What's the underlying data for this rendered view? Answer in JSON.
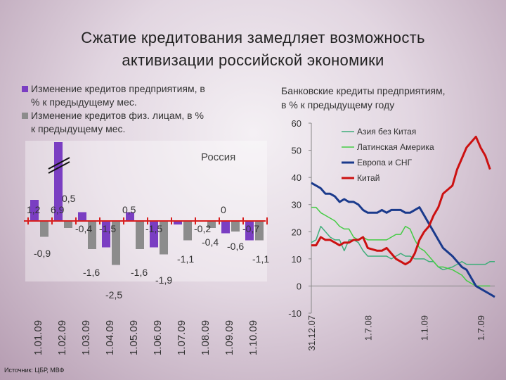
{
  "title": {
    "line1": "Сжатие кредитования замедляет возможность",
    "line2": "активизации российской экономики"
  },
  "source": "Источник: ЦБР, МВФ",
  "chart_data": [
    {
      "type": "bar",
      "subtitle": "Россия",
      "legend": [
        {
          "name": "Изменение кредитов предприятиям, в % к предыдущему мес.",
          "lines": [
            "Изменение кредитов предприятиям, в",
            "% к предыдущему мес."
          ],
          "color": "#7a3ec2"
        },
        {
          "name": "Изменение кредитов физ. лицам, в % к предыдущему мес.",
          "lines": [
            "Изменение кредитов физ. лицам, в %",
            "к предыдущему мес."
          ],
          "color": "#8c8c8c"
        }
      ],
      "categories": [
        "1.01.09",
        "1.02.09",
        "1.03.09",
        "1.04.09",
        "1.05.09",
        "1.06.09",
        "1.07.09",
        "1.08.09",
        "1.09.09",
        "1.10.09"
      ],
      "series": [
        {
          "name": "Изменение кредитов предприятиям, в % к предыдущему мес.",
          "color": "#7a3ec2",
          "values": [
            1.2,
            6.9,
            0.5,
            -1.5,
            0.5,
            -1.5,
            -0.2,
            0,
            -0.7,
            -1.1
          ],
          "labels": [
            "1,2",
            "6,9",
            "0,5",
            "-1,5",
            "0,5",
            "-1,5",
            "-0,2",
            "0",
            "-0,7",
            "-1,1"
          ]
        },
        {
          "name": "Изменение кредитов физ. лицам, в % к предыдущему мес.",
          "color": "#8c8c8c",
          "values": [
            -0.9,
            -0.4,
            -1.6,
            -2.5,
            -1.6,
            -1.9,
            -1.1,
            -0.4,
            -0.6,
            -1.1
          ],
          "labels": [
            "-0,9",
            "-0,4",
            "-1,6",
            "-2,5",
            "-1,6",
            "-1,9",
            "-1,1",
            "-0,4",
            "-0,6",
            "-1,1"
          ]
        }
      ],
      "axis_break": true,
      "line_colors": {
        "axis": "#d81e1e"
      }
    },
    {
      "type": "line",
      "title": "Банковские кредиты предприятиям, в % к предыдущему году",
      "title_lines": [
        "Банковские кредиты предприятиям,",
        "в % к предыдущему году"
      ],
      "ylim": [
        -10,
        60
      ],
      "yticks": [
        -10,
        0,
        10,
        20,
        30,
        40,
        50,
        60
      ],
      "xlim": [
        0,
        19.5
      ],
      "xticks": [
        {
          "x": 0,
          "label": "31.12.07"
        },
        {
          "x": 6,
          "label": "1.7.08"
        },
        {
          "x": 12,
          "label": "1.1.09"
        },
        {
          "x": 18,
          "label": "1.7.09"
        }
      ],
      "series": [
        {
          "name": "Азия без Китая",
          "color": "#3fae7a",
          "width": 1.5,
          "points": [
            [
              0,
              16
            ],
            [
              0.5,
              17
            ],
            [
              1,
              22
            ],
            [
              1.5,
              20
            ],
            [
              2,
              18
            ],
            [
              2.5,
              17
            ],
            [
              3,
              17
            ],
            [
              3.5,
              13
            ],
            [
              4,
              17
            ],
            [
              4.5,
              17
            ],
            [
              5,
              16
            ],
            [
              5.5,
              13
            ],
            [
              6,
              11
            ],
            [
              7,
              11
            ],
            [
              7.5,
              11
            ],
            [
              8,
              11
            ],
            [
              8.5,
              10
            ],
            [
              9,
              11
            ],
            [
              9.5,
              12
            ],
            [
              10,
              11
            ],
            [
              10.5,
              11
            ],
            [
              11,
              10
            ],
            [
              11.5,
              10
            ],
            [
              12,
              10
            ],
            [
              12.5,
              9
            ],
            [
              13,
              9
            ],
            [
              13.5,
              7
            ],
            [
              14,
              6
            ],
            [
              15,
              7
            ],
            [
              15.5,
              8
            ],
            [
              16,
              9
            ],
            [
              16.5,
              8
            ],
            [
              17,
              8
            ],
            [
              17.5,
              8
            ],
            [
              18,
              8
            ],
            [
              18.5,
              8
            ],
            [
              19,
              9
            ],
            [
              19.5,
              9
            ]
          ]
        },
        {
          "name": "Латинская Америка",
          "color": "#44cc44",
          "width": 1.5,
          "points": [
            [
              0,
              29
            ],
            [
              0.5,
              29
            ],
            [
              1,
              27
            ],
            [
              1.5,
              26
            ],
            [
              2,
              25
            ],
            [
              2.5,
              24
            ],
            [
              3,
              22
            ],
            [
              3.5,
              21
            ],
            [
              4,
              21
            ],
            [
              4.5,
              18
            ],
            [
              5,
              17
            ],
            [
              5.5,
              18
            ],
            [
              6,
              17
            ],
            [
              7,
              17
            ],
            [
              7.5,
              17
            ],
            [
              8,
              17
            ],
            [
              8.5,
              18
            ],
            [
              9,
              19
            ],
            [
              9.5,
              19
            ],
            [
              10,
              22
            ],
            [
              10.5,
              21
            ],
            [
              11,
              17
            ],
            [
              11.5,
              14
            ],
            [
              12,
              13
            ],
            [
              12.5,
              11
            ],
            [
              13,
              9
            ],
            [
              13.5,
              7
            ],
            [
              14,
              7
            ],
            [
              15,
              6
            ],
            [
              15.5,
              5
            ],
            [
              16,
              4
            ],
            [
              16.5,
              2
            ],
            [
              17,
              1
            ],
            [
              17.5,
              0
            ],
            [
              18,
              0
            ],
            [
              19,
              0
            ]
          ]
        },
        {
          "name": "Европа и СНГ",
          "color": "#1a3a8c",
          "width": 3,
          "points": [
            [
              0,
              38
            ],
            [
              0.5,
              37
            ],
            [
              1,
              36
            ],
            [
              1.5,
              34
            ],
            [
              2,
              34
            ],
            [
              2.5,
              33
            ],
            [
              3,
              31
            ],
            [
              3.5,
              32
            ],
            [
              4,
              31
            ],
            [
              4.5,
              31
            ],
            [
              5,
              30
            ],
            [
              5.5,
              28
            ],
            [
              6,
              27
            ],
            [
              7,
              27
            ],
            [
              7.5,
              28
            ],
            [
              8,
              27
            ],
            [
              8.5,
              28
            ],
            [
              9,
              28
            ],
            [
              9.5,
              28
            ],
            [
              10,
              27
            ],
            [
              10.5,
              27
            ],
            [
              11,
              28
            ],
            [
              11.5,
              29
            ],
            [
              12,
              26
            ],
            [
              12.5,
              23
            ],
            [
              13,
              20
            ],
            [
              13.5,
              17
            ],
            [
              14,
              14
            ],
            [
              15,
              11
            ],
            [
              15.5,
              9
            ],
            [
              16,
              7
            ],
            [
              16.5,
              6
            ],
            [
              17,
              3
            ],
            [
              17.5,
              0
            ],
            [
              18,
              -1
            ],
            [
              19,
              -3
            ],
            [
              19.5,
              -4
            ]
          ]
        },
        {
          "name": "Китай",
          "color": "#cc1111",
          "width": 3,
          "points": [
            [
              0,
              15
            ],
            [
              0.5,
              15
            ],
            [
              1,
              18
            ],
            [
              1.5,
              17
            ],
            [
              2,
              17
            ],
            [
              2.5,
              16
            ],
            [
              3,
              15
            ],
            [
              3.5,
              16
            ],
            [
              4,
              16
            ],
            [
              4.5,
              17
            ],
            [
              5,
              17
            ],
            [
              5.5,
              18
            ],
            [
              6,
              14
            ],
            [
              7,
              13
            ],
            [
              7.5,
              13
            ],
            [
              8,
              14
            ],
            [
              8.5,
              12
            ],
            [
              9,
              10
            ],
            [
              9.5,
              9
            ],
            [
              10,
              8
            ],
            [
              10.5,
              9
            ],
            [
              11,
              12
            ],
            [
              11.5,
              17
            ],
            [
              12,
              20
            ],
            [
              12.5,
              22
            ],
            [
              13,
              26
            ],
            [
              13.5,
              29
            ],
            [
              14,
              34
            ],
            [
              15,
              37
            ],
            [
              15.5,
              43
            ],
            [
              16,
              47
            ],
            [
              16.5,
              51
            ],
            [
              17,
              53
            ],
            [
              17.5,
              55
            ],
            [
              18,
              51
            ],
            [
              18.5,
              48
            ],
            [
              19,
              43
            ]
          ]
        }
      ]
    }
  ]
}
